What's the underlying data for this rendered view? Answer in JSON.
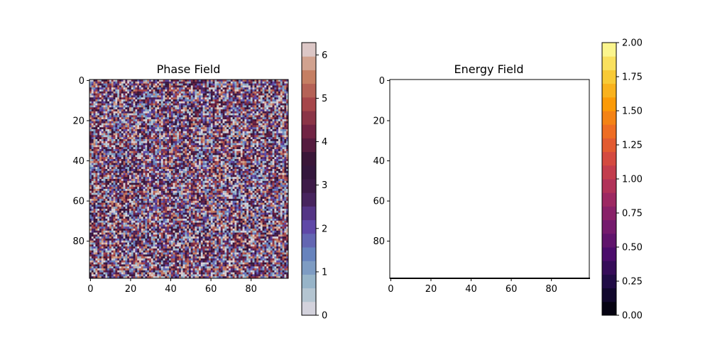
{
  "chart_data": [
    {
      "type": "heatmap",
      "title": "Phase Field",
      "xlabel": "",
      "ylabel": "",
      "grid_size": [
        100,
        100
      ],
      "xlim": [
        0,
        99
      ],
      "ylim": [
        99,
        0
      ],
      "x_ticks": [
        0,
        20,
        40,
        60,
        80
      ],
      "y_ticks": [
        0,
        20,
        40,
        60,
        80
      ],
      "colormap": "twilight",
      "value_range": [
        0,
        6.2832
      ],
      "pattern": "random phase values in [0, 2π) — fine-grained noise",
      "colorbar": {
        "min": 0,
        "max": 6.2832,
        "ticks": [
          0,
          1,
          2,
          3,
          4,
          5,
          6
        ],
        "levels": 20,
        "colors": [
          "#e2d9e2",
          "#9ebbc9",
          "#6785be",
          "#5e43a5",
          "#421e4f",
          "#2f1436",
          "#6d2144",
          "#a7474a",
          "#c98767",
          "#e2d9e2"
        ]
      }
    },
    {
      "type": "heatmap",
      "title": "Energy Field",
      "xlabel": "",
      "ylabel": "",
      "grid_size": [
        100,
        100
      ],
      "xlim": [
        0,
        99
      ],
      "ylim": [
        99,
        0
      ],
      "x_ticks": [
        0,
        20,
        40,
        60,
        80
      ],
      "y_ticks": [
        0,
        20,
        40,
        60,
        80
      ],
      "colormap": "inferno",
      "value_range": [
        0,
        2
      ],
      "pattern": "uniform field rendered white (no variation visible)",
      "fill_color": "#ffffff",
      "colorbar": {
        "min": 0,
        "max": 2,
        "ticks": [
          0.0,
          0.25,
          0.5,
          0.75,
          1.0,
          1.25,
          1.5,
          1.75,
          2.0
        ],
        "tick_labels": [
          "0.00",
          "0.25",
          "0.50",
          "0.75",
          "1.00",
          "1.25",
          "1.50",
          "1.75",
          "2.00"
        ],
        "levels": 20,
        "colors": [
          "#000004",
          "#1b0c41",
          "#4a0c6b",
          "#781c6d",
          "#a52c60",
          "#cf4446",
          "#ed6925",
          "#fb9b06",
          "#f7d13d",
          "#fcffa4"
        ]
      }
    }
  ]
}
